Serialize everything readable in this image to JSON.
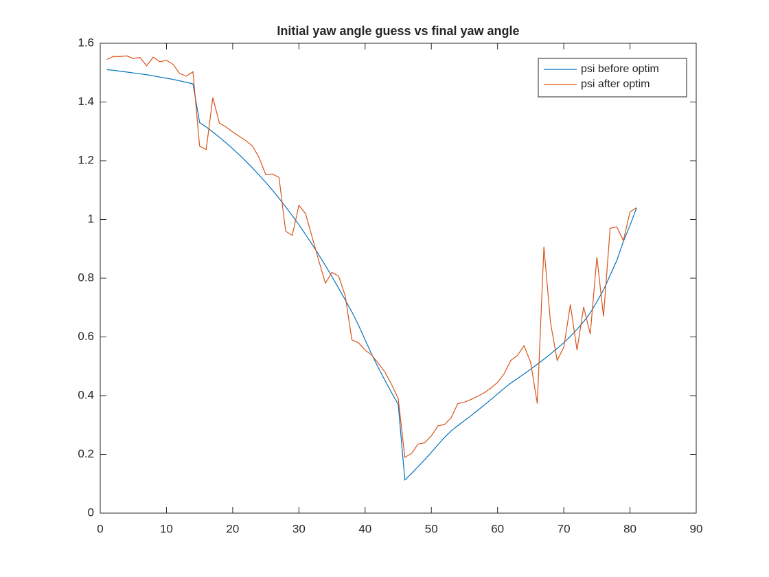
{
  "chart_data": {
    "type": "line",
    "title": "Initial yaw angle guess vs final yaw angle",
    "x": [
      1,
      2,
      3,
      4,
      5,
      6,
      7,
      8,
      9,
      10,
      11,
      12,
      13,
      14,
      15,
      16,
      17,
      18,
      19,
      20,
      21,
      22,
      23,
      24,
      25,
      26,
      27,
      28,
      29,
      30,
      31,
      32,
      33,
      34,
      35,
      36,
      37,
      38,
      39,
      40,
      41,
      42,
      43,
      44,
      45,
      46,
      47,
      48,
      49,
      50,
      51,
      52,
      53,
      54,
      55,
      56,
      57,
      58,
      59,
      60,
      61,
      62,
      63,
      64,
      65,
      66,
      67,
      68,
      69,
      70,
      71,
      72,
      73,
      74,
      75,
      76,
      77,
      78,
      79,
      80,
      81
    ],
    "series": [
      {
        "name": "psi before optim",
        "color": "#0072bd",
        "values": [
          1.51,
          1.508,
          1.505,
          1.502,
          1.499,
          1.496,
          1.493,
          1.489,
          1.485,
          1.481,
          1.477,
          1.472,
          1.467,
          1.462,
          1.33,
          1.315,
          1.298,
          1.28,
          1.261,
          1.241,
          1.22,
          1.198,
          1.175,
          1.151,
          1.126,
          1.1,
          1.072,
          1.043,
          1.013,
          0.982,
          0.949,
          0.915,
          0.88,
          0.843,
          0.805,
          0.766,
          0.726,
          0.685,
          0.64,
          0.59,
          0.54,
          0.495,
          0.452,
          0.41,
          0.37,
          0.113,
          0.135,
          0.158,
          0.182,
          0.207,
          0.233,
          0.258,
          0.28,
          0.298,
          0.315,
          0.332,
          0.35,
          0.368,
          0.387,
          0.406,
          0.425,
          0.443,
          0.458,
          0.474,
          0.49,
          0.507,
          0.524,
          0.542,
          0.561,
          0.58,
          0.602,
          0.626,
          0.652,
          0.682,
          0.72,
          0.76,
          0.81,
          0.86,
          0.925,
          0.98,
          1.04
        ]
      },
      {
        "name": "psi after optim",
        "color": "#d95319",
        "values": [
          1.545,
          1.555,
          1.555,
          1.557,
          1.548,
          1.552,
          1.523,
          1.553,
          1.537,
          1.542,
          1.528,
          1.497,
          1.488,
          1.503,
          1.25,
          1.238,
          1.415,
          1.328,
          1.315,
          1.298,
          1.283,
          1.268,
          1.25,
          1.21,
          1.152,
          1.155,
          1.143,
          0.96,
          0.946,
          1.048,
          1.02,
          0.94,
          0.86,
          0.783,
          0.82,
          0.807,
          0.74,
          0.59,
          0.58,
          0.555,
          0.538,
          0.51,
          0.48,
          0.438,
          0.39,
          0.19,
          0.203,
          0.235,
          0.24,
          0.263,
          0.297,
          0.302,
          0.325,
          0.373,
          0.378,
          0.387,
          0.398,
          0.41,
          0.426,
          0.445,
          0.475,
          0.52,
          0.537,
          0.57,
          0.513,
          0.373,
          0.907,
          0.648,
          0.52,
          0.565,
          0.71,
          0.555,
          0.702,
          0.61,
          0.872,
          0.67,
          0.97,
          0.975,
          0.928,
          1.026,
          1.04
        ]
      }
    ],
    "xlim": [
      0,
      90
    ],
    "xticks": [
      0,
      10,
      20,
      30,
      40,
      50,
      60,
      70,
      80,
      90
    ],
    "ylim": [
      0,
      1.6
    ],
    "yticks": [
      0,
      0.2,
      0.4,
      0.6,
      0.8,
      1,
      1.2,
      1.4,
      1.6
    ],
    "grid": false,
    "legend": "northeast"
  }
}
